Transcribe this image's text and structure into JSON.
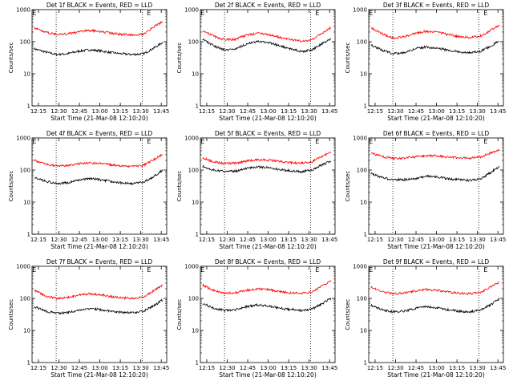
{
  "common": {
    "xlabel": "Start Time (21-Mar-08 12:10:20)",
    "ylabel": "Counts/sec",
    "x_ticks": [
      "12:15",
      "12:30",
      "12:45",
      "13:00",
      "13:15",
      "13:30",
      "13:45"
    ],
    "x_tick_minutes": [
      15,
      30,
      45,
      60,
      75,
      90,
      105
    ],
    "xlim_minutes": [
      10.33,
      109
    ],
    "x_origin": "12:00",
    "y_ticks": [
      "1",
      "10",
      "100",
      "1000"
    ],
    "y_tick_values": [
      1,
      10,
      100,
      1000
    ],
    "ylim": [
      1,
      1000
    ],
    "y_scale": "log",
    "dotted_lines_minutes": [
      28,
      91
    ],
    "marker_label": "E",
    "marker_minutes": [
      12,
      96
    ],
    "colors": {
      "events": "#000000",
      "lld": "#ff0000"
    }
  },
  "chart_data": [
    {
      "type": "line",
      "title": "Det 1f BLACK = Events, RED = LLD",
      "series": [
        {
          "color": "#000000",
          "x": [
            12,
            20,
            28,
            36,
            44,
            52,
            60,
            68,
            76,
            84,
            92,
            100,
            106
          ],
          "values": [
            60,
            48,
            40,
            42,
            50,
            56,
            52,
            46,
            42,
            40,
            42,
            65,
            95
          ]
        },
        {
          "color": "#ff0000",
          "x": [
            12,
            20,
            28,
            36,
            44,
            52,
            60,
            68,
            76,
            84,
            92,
            100,
            106
          ],
          "values": [
            270,
            200,
            170,
            175,
            205,
            225,
            210,
            185,
            170,
            165,
            175,
            300,
            420
          ]
        }
      ]
    },
    {
      "type": "line",
      "title": "Det 2f BLACK = Events, RED = LLD",
      "series": [
        {
          "color": "#000000",
          "x": [
            12,
            20,
            28,
            36,
            44,
            52,
            60,
            68,
            76,
            84,
            92,
            100,
            106
          ],
          "values": [
            120,
            75,
            55,
            60,
            85,
            100,
            95,
            75,
            60,
            50,
            55,
            90,
            120
          ]
        },
        {
          "color": "#ff0000",
          "x": [
            12,
            20,
            28,
            36,
            44,
            52,
            60,
            68,
            76,
            84,
            92,
            100,
            106
          ],
          "values": [
            220,
            150,
            115,
            120,
            160,
            180,
            170,
            140,
            115,
            105,
            115,
            190,
            280
          ]
        }
      ]
    },
    {
      "type": "line",
      "title": "Det 3f BLACK = Events, RED = LLD",
      "series": [
        {
          "color": "#000000",
          "x": [
            12,
            20,
            28,
            36,
            44,
            52,
            60,
            68,
            76,
            84,
            92,
            100,
            106
          ],
          "values": [
            80,
            55,
            42,
            45,
            60,
            68,
            64,
            55,
            48,
            45,
            50,
            75,
            105
          ]
        },
        {
          "color": "#ff0000",
          "x": [
            12,
            20,
            28,
            36,
            44,
            52,
            60,
            68,
            76,
            84,
            92,
            100,
            106
          ],
          "values": [
            280,
            180,
            130,
            140,
            180,
            210,
            200,
            170,
            145,
            135,
            150,
            230,
            330
          ]
        }
      ]
    },
    {
      "type": "line",
      "title": "Det 4f BLACK = Events, RED = LLD",
      "series": [
        {
          "color": "#000000",
          "x": [
            12,
            20,
            28,
            36,
            44,
            52,
            60,
            68,
            76,
            84,
            92,
            100,
            106
          ],
          "values": [
            60,
            45,
            38,
            40,
            48,
            55,
            50,
            44,
            40,
            38,
            42,
            65,
            100
          ]
        },
        {
          "color": "#ff0000",
          "x": [
            12,
            20,
            28,
            36,
            44,
            52,
            60,
            68,
            76,
            84,
            92,
            100,
            106
          ],
          "values": [
            200,
            155,
            135,
            135,
            155,
            170,
            160,
            145,
            135,
            130,
            140,
            220,
            320
          ]
        }
      ]
    },
    {
      "type": "line",
      "title": "Det 5f BLACK = Events, RED = LLD",
      "series": [
        {
          "color": "#000000",
          "x": [
            12,
            20,
            28,
            36,
            44,
            52,
            60,
            68,
            76,
            84,
            92,
            100,
            106
          ],
          "values": [
            130,
            100,
            90,
            92,
            110,
            125,
            120,
            105,
            95,
            90,
            98,
            150,
            190
          ]
        },
        {
          "color": "#ff0000",
          "x": [
            12,
            20,
            28,
            36,
            44,
            52,
            60,
            68,
            76,
            84,
            92,
            100,
            106
          ],
          "values": [
            240,
            180,
            160,
            165,
            190,
            210,
            205,
            185,
            170,
            165,
            180,
            280,
            340
          ]
        }
      ]
    },
    {
      "type": "line",
      "title": "Det 6f BLACK = Events, RED = LLD",
      "series": [
        {
          "color": "#000000",
          "x": [
            12,
            20,
            28,
            36,
            44,
            52,
            60,
            68,
            76,
            84,
            92,
            100,
            106
          ],
          "values": [
            80,
            58,
            50,
            50,
            52,
            65,
            62,
            54,
            50,
            48,
            52,
            85,
            130
          ]
        },
        {
          "color": "#ff0000",
          "x": [
            12,
            20,
            28,
            36,
            44,
            52,
            60,
            68,
            76,
            84,
            92,
            100,
            106
          ],
          "values": [
            350,
            260,
            230,
            235,
            260,
            280,
            275,
            255,
            240,
            235,
            250,
            340,
            420
          ]
        }
      ]
    },
    {
      "type": "line",
      "title": "Det 7f BLACK = Events, RED = LLD",
      "series": [
        {
          "color": "#000000",
          "x": [
            12,
            20,
            28,
            36,
            44,
            52,
            60,
            68,
            76,
            84,
            92,
            100,
            106
          ],
          "values": [
            55,
            40,
            35,
            36,
            42,
            48,
            45,
            40,
            37,
            36,
            40,
            60,
            90
          ]
        },
        {
          "color": "#ff0000",
          "x": [
            12,
            20,
            28,
            36,
            44,
            52,
            60,
            68,
            76,
            84,
            92,
            100,
            106
          ],
          "values": [
            180,
            120,
            100,
            105,
            125,
            140,
            130,
            115,
            105,
            100,
            110,
            180,
            260
          ]
        }
      ]
    },
    {
      "type": "line",
      "title": "Det 8f BLACK = Events, RED = LLD",
      "series": [
        {
          "color": "#000000",
          "x": [
            12,
            20,
            28,
            36,
            44,
            52,
            60,
            68,
            76,
            84,
            92,
            100,
            106
          ],
          "values": [
            70,
            50,
            42,
            44,
            55,
            62,
            58,
            50,
            45,
            42,
            46,
            70,
            100
          ]
        },
        {
          "color": "#ff0000",
          "x": [
            12,
            20,
            28,
            36,
            44,
            52,
            60,
            68,
            76,
            84,
            92,
            100,
            106
          ],
          "values": [
            260,
            180,
            145,
            150,
            180,
            200,
            190,
            165,
            150,
            145,
            160,
            250,
            350
          ]
        }
      ]
    },
    {
      "type": "line",
      "title": "Det 9f BLACK = Events, RED = LLD",
      "series": [
        {
          "color": "#000000",
          "x": [
            12,
            20,
            28,
            36,
            44,
            52,
            60,
            68,
            76,
            84,
            92,
            100,
            106
          ],
          "values": [
            60,
            45,
            38,
            40,
            48,
            55,
            52,
            45,
            40,
            38,
            42,
            65,
            95
          ]
        },
        {
          "color": "#ff0000",
          "x": [
            12,
            20,
            28,
            36,
            44,
            52,
            60,
            68,
            76,
            84,
            92,
            100,
            106
          ],
          "values": [
            230,
            165,
            140,
            145,
            170,
            190,
            180,
            160,
            145,
            140,
            150,
            230,
            320
          ]
        }
      ]
    }
  ]
}
